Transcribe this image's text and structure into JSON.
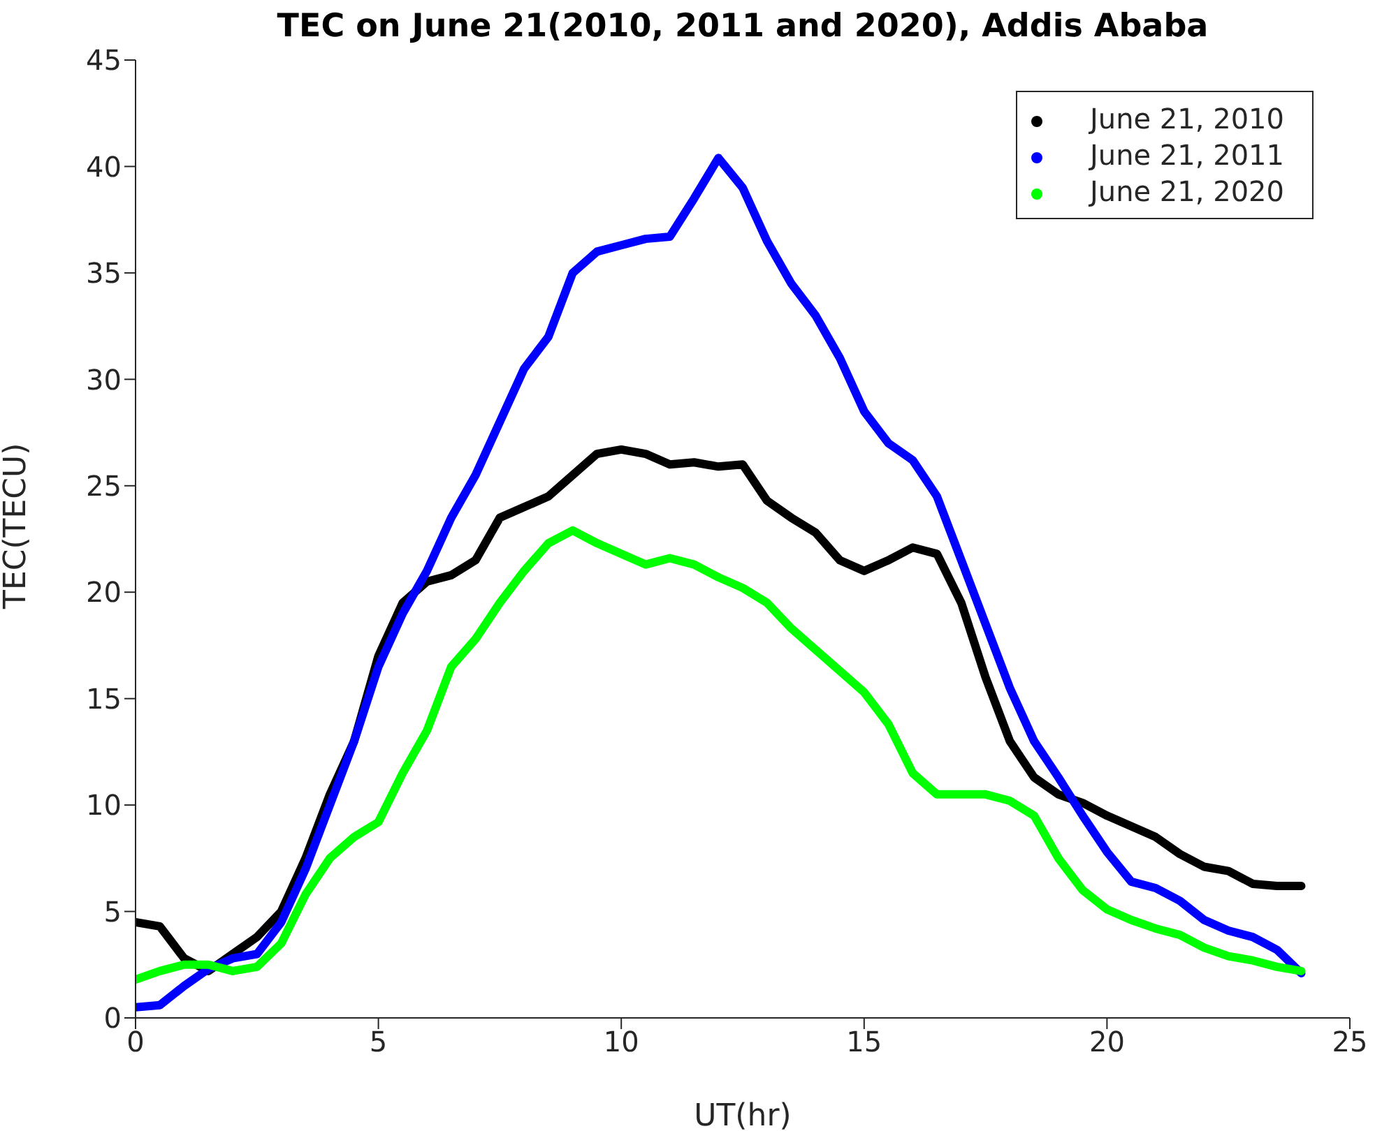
{
  "chart_data": {
    "type": "line",
    "title": "TEC on June 21(2010, 2011 and 2020), Addis Ababa",
    "xlabel": "UT(hr)",
    "ylabel": "TEC(TECU)",
    "x": [
      0,
      0.5,
      1,
      1.5,
      2,
      2.5,
      3,
      3.5,
      4,
      4.5,
      5,
      5.5,
      6,
      6.5,
      7,
      7.5,
      8,
      8.5,
      9,
      9.5,
      10,
      10.5,
      11,
      11.5,
      12,
      12.5,
      13,
      13.5,
      14,
      14.5,
      15,
      15.5,
      16,
      16.5,
      17,
      17.5,
      18,
      18.5,
      19,
      19.5,
      20,
      20.5,
      21,
      21.5,
      22,
      22.5,
      23,
      23.5,
      24
    ],
    "series": [
      {
        "name": "June 21, 2010",
        "color": "#000000",
        "values": [
          4.5,
          4.3,
          2.8,
          2.2,
          3.0,
          3.8,
          5.0,
          7.5,
          10.5,
          13,
          17,
          19.5,
          20.5,
          20.8,
          21.5,
          23.5,
          24,
          24.5,
          25.5,
          26.5,
          26.7,
          26.5,
          26,
          26.1,
          25.9,
          26,
          24.3,
          23.5,
          22.8,
          21.5,
          21,
          21.5,
          22.1,
          21.8,
          19.5,
          16,
          13,
          11.3,
          10.5,
          10.1,
          9.5,
          9,
          8.5,
          7.7,
          7.1,
          6.9,
          6.3,
          6.2,
          6.2
        ]
      },
      {
        "name": "June 21, 2011",
        "color": "#0000ff",
        "values": [
          0.5,
          0.6,
          1.5,
          2.3,
          2.8,
          3.0,
          4.5,
          7,
          10,
          13,
          16.5,
          19,
          21,
          23.5,
          25.5,
          28,
          30.5,
          32,
          35,
          36,
          36.3,
          36.6,
          36.7,
          38.5,
          40.4,
          39,
          36.5,
          34.5,
          33,
          31,
          28.5,
          27,
          26.2,
          24.5,
          21.5,
          18.5,
          15.5,
          13,
          11.3,
          9.5,
          7.8,
          6.4,
          6.1,
          5.5,
          4.6,
          4.1,
          3.8,
          3.2,
          2.1
        ]
      },
      {
        "name": "June 21, 2020",
        "color": "#00ff00",
        "values": [
          1.8,
          2.2,
          2.5,
          2.5,
          2.2,
          2.4,
          3.5,
          5.8,
          7.5,
          8.5,
          9.2,
          11.5,
          13.5,
          16.5,
          17.8,
          19.5,
          21,
          22.3,
          22.9,
          22.3,
          21.8,
          21.3,
          21.6,
          21.3,
          20.7,
          20.2,
          19.5,
          18.3,
          17.3,
          16.3,
          15.3,
          13.8,
          11.5,
          10.5,
          10.5,
          10.5,
          10.2,
          9.5,
          7.5,
          6,
          5.1,
          4.6,
          4.2,
          3.9,
          3.3,
          2.9,
          2.7,
          2.4,
          2.2
        ]
      }
    ],
    "xlim": [
      0,
      25
    ],
    "xticks": [
      0,
      5,
      10,
      15,
      20,
      25
    ],
    "ylim": [
      0,
      45
    ],
    "yticks": [
      0,
      5,
      10,
      15,
      20,
      25,
      30,
      35,
      40,
      45
    ],
    "legend": "top right",
    "grid": false,
    "marker": "none",
    "line_style": "solid"
  }
}
